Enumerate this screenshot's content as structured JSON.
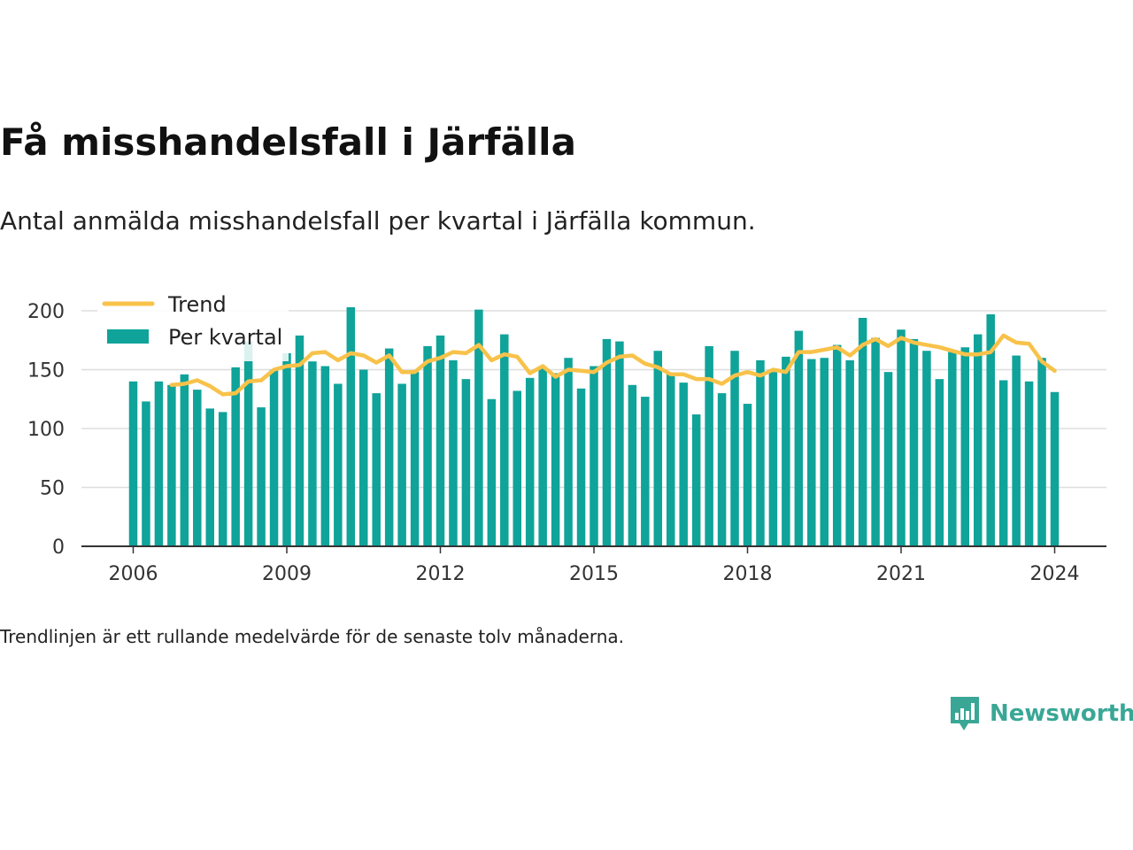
{
  "title": "Få misshandelsfall i Järfälla",
  "subtitle": "Antal anmälda misshandelsfall per kvartal i Järfälla kommun.",
  "footnote": "Trendlinjen är ett rullande medelvärde för de senaste tolv månaderna.",
  "brand": "Newsworthy",
  "colors": {
    "bar": "#0fa39a",
    "trend": "#f8c24a",
    "grid": "#dddddd",
    "axis": "#333333",
    "brand": "#3aa796"
  },
  "chart_data": {
    "type": "bar",
    "xlim": [
      2006,
      2024
    ],
    "ylim": [
      0,
      200
    ],
    "y_ticks": [
      0,
      50,
      100,
      150,
      200
    ],
    "x_ticks": [
      2006,
      2009,
      2012,
      2015,
      2018,
      2021,
      2024
    ],
    "grid": "horizontal",
    "legend_position": "top-left",
    "series": [
      {
        "name": "Per kvartal",
        "type": "bar",
        "x": [
          "2006-Q1",
          "2006-Q2",
          "2006-Q3",
          "2006-Q4",
          "2007-Q1",
          "2007-Q2",
          "2007-Q3",
          "2007-Q4",
          "2008-Q1",
          "2008-Q2",
          "2008-Q3",
          "2008-Q4",
          "2009-Q1",
          "2009-Q2",
          "2009-Q3",
          "2009-Q4",
          "2010-Q1",
          "2010-Q2",
          "2010-Q3",
          "2010-Q4",
          "2011-Q1",
          "2011-Q2",
          "2011-Q3",
          "2011-Q4",
          "2012-Q1",
          "2012-Q2",
          "2012-Q3",
          "2012-Q4",
          "2013-Q1",
          "2013-Q2",
          "2013-Q3",
          "2013-Q4",
          "2014-Q1",
          "2014-Q2",
          "2014-Q3",
          "2014-Q4",
          "2015-Q1",
          "2015-Q2",
          "2015-Q3",
          "2015-Q4",
          "2016-Q1",
          "2016-Q2",
          "2016-Q3",
          "2016-Q4",
          "2017-Q1",
          "2017-Q2",
          "2017-Q3",
          "2017-Q4",
          "2018-Q1",
          "2018-Q2",
          "2018-Q3",
          "2018-Q4",
          "2019-Q1",
          "2019-Q2",
          "2019-Q3",
          "2019-Q4",
          "2020-Q1",
          "2020-Q2",
          "2020-Q3",
          "2020-Q4",
          "2021-Q1",
          "2021-Q2",
          "2021-Q3",
          "2021-Q4",
          "2022-Q1",
          "2022-Q2",
          "2022-Q3",
          "2022-Q4",
          "2023-Q1",
          "2023-Q2",
          "2023-Q3",
          "2023-Q4",
          "2024-Q1"
        ],
        "values": [
          140,
          123,
          140,
          137,
          146,
          133,
          117,
          114,
          152,
          174,
          118,
          150,
          164,
          179,
          157,
          153,
          138,
          203,
          150,
          130,
          168,
          138,
          148,
          170,
          179,
          158,
          142,
          201,
          125,
          180,
          132,
          143,
          152,
          147,
          160,
          134,
          153,
          176,
          174,
          137,
          127,
          166,
          147,
          139,
          112,
          170,
          130,
          166,
          121,
          158,
          148,
          161,
          183,
          159,
          160,
          171,
          158,
          194,
          177,
          148,
          184,
          176,
          166,
          142,
          165,
          169,
          180,
          197,
          141,
          162,
          140,
          160,
          131
        ]
      },
      {
        "name": "Trend",
        "type": "line",
        "x": [
          "2006-Q4",
          "2007-Q1",
          "2007-Q2",
          "2007-Q3",
          "2007-Q4",
          "2008-Q1",
          "2008-Q2",
          "2008-Q3",
          "2008-Q4",
          "2009-Q1",
          "2009-Q2",
          "2009-Q3",
          "2009-Q4",
          "2010-Q1",
          "2010-Q2",
          "2010-Q3",
          "2010-Q4",
          "2011-Q1",
          "2011-Q2",
          "2011-Q3",
          "2011-Q4",
          "2012-Q1",
          "2012-Q2",
          "2012-Q3",
          "2012-Q4",
          "2013-Q1",
          "2013-Q2",
          "2013-Q3",
          "2013-Q4",
          "2014-Q1",
          "2014-Q2",
          "2014-Q3",
          "2014-Q4",
          "2015-Q1",
          "2015-Q2",
          "2015-Q3",
          "2015-Q4",
          "2016-Q1",
          "2016-Q2",
          "2016-Q3",
          "2016-Q4",
          "2017-Q1",
          "2017-Q2",
          "2017-Q3",
          "2017-Q4",
          "2018-Q1",
          "2018-Q2",
          "2018-Q3",
          "2018-Q4",
          "2019-Q1",
          "2019-Q2",
          "2019-Q3",
          "2019-Q4",
          "2020-Q1",
          "2020-Q2",
          "2020-Q3",
          "2020-Q4",
          "2021-Q1",
          "2021-Q2",
          "2021-Q3",
          "2021-Q4",
          "2022-Q1",
          "2022-Q2",
          "2022-Q3",
          "2022-Q4",
          "2023-Q1",
          "2023-Q2",
          "2023-Q3",
          "2023-Q4",
          "2024-Q1"
        ],
        "values": [
          137,
          138,
          141,
          136,
          129,
          130,
          140,
          141,
          150,
          153,
          154,
          164,
          165,
          158,
          164,
          162,
          156,
          162,
          148,
          148,
          157,
          160,
          165,
          164,
          171,
          158,
          163,
          161,
          147,
          153,
          144,
          150,
          149,
          148,
          156,
          161,
          162,
          155,
          152,
          146,
          146,
          142,
          142,
          138,
          145,
          148,
          145,
          150,
          148,
          165,
          165,
          167,
          169,
          162,
          171,
          176,
          170,
          177,
          173,
          171,
          169,
          166,
          163,
          163,
          165,
          179,
          173,
          172,
          157,
          149
        ]
      }
    ]
  }
}
